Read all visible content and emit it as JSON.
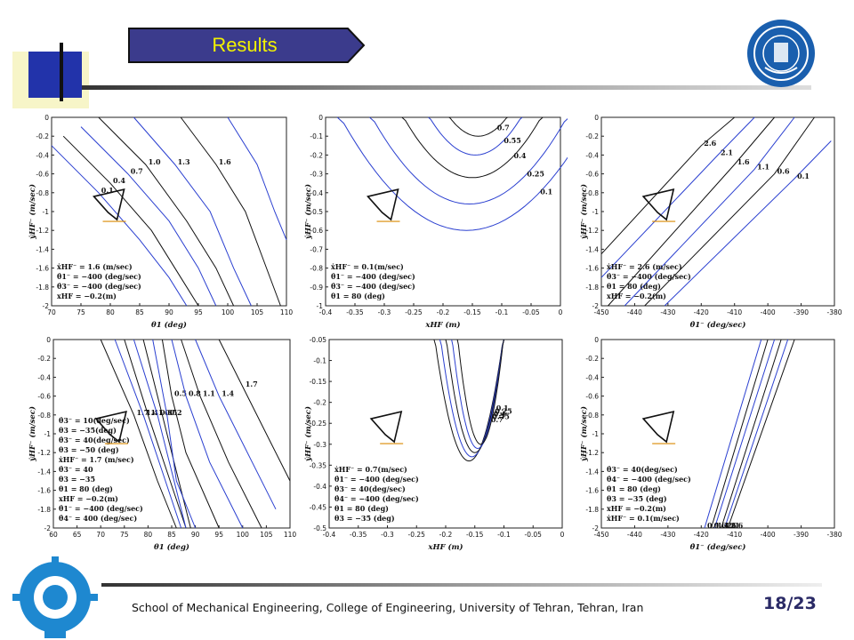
{
  "slide": {
    "title": "Results",
    "footer": "School of Mechanical Engineering, College of Engineering, University of Tehran, Tehran, Iran",
    "page": "18/23",
    "colors": {
      "title_bar": "#3b3b8c",
      "title_text": "#f2f200",
      "accent_blue": "#2233aa",
      "accent_gold": "#ddd000",
      "contour_blue": "#2a3fd0",
      "contour_black": "#111111"
    }
  },
  "chart_data": [
    {
      "type": "contour",
      "xlabel": "θ1 (deg)",
      "ylabel": "ẏHF⁻ (m/sec)",
      "xlim": [
        70,
        110
      ],
      "ylim": [
        -2,
        0
      ],
      "xticks": [
        "70",
        "75",
        "80",
        "85",
        "90",
        "95",
        "100",
        "105",
        "110"
      ],
      "yticks": [
        "0",
        "-0.2",
        "-0.4",
        "-0.6",
        "-0.8",
        "-1",
        "-1.2",
        "-1.4",
        "-1.6",
        "-1.8",
        "-2"
      ],
      "levels": [
        {
          "label": "0.1",
          "color": "blue",
          "pts": [
            [
              70,
              -0.3
            ],
            [
              78,
              -0.8
            ],
            [
              85,
              -1.3
            ],
            [
              90,
              -1.7
            ],
            [
              93,
              -2
            ]
          ]
        },
        {
          "label": "0.4",
          "color": "black",
          "pts": [
            [
              72,
              -0.2
            ],
            [
              80,
              -0.7
            ],
            [
              87,
              -1.2
            ],
            [
              92,
              -1.7
            ],
            [
              95,
              -2
            ]
          ]
        },
        {
          "label": "0.7",
          "color": "blue",
          "pts": [
            [
              75,
              -0.1
            ],
            [
              83,
              -0.6
            ],
            [
              90,
              -1.1
            ],
            [
              95,
              -1.6
            ],
            [
              98,
              -2
            ]
          ]
        },
        {
          "label": "1.0",
          "color": "black",
          "pts": [
            [
              78,
              0
            ],
            [
              86,
              -0.5
            ],
            [
              93,
              -1.1
            ],
            [
              98,
              -1.6
            ],
            [
              101,
              -2
            ]
          ]
        },
        {
          "label": "1.3",
          "color": "blue",
          "pts": [
            [
              84,
              0
            ],
            [
              91,
              -0.5
            ],
            [
              97,
              -1.0
            ],
            [
              101,
              -1.6
            ],
            [
              104,
              -2
            ]
          ]
        },
        {
          "label": "1.6",
          "color": "black",
          "pts": [
            [
              92,
              0
            ],
            [
              98,
              -0.5
            ],
            [
              103,
              -1.0
            ],
            [
              106,
              -1.5
            ],
            [
              109,
              -2
            ]
          ]
        },
        {
          "label": "",
          "color": "blue",
          "pts": [
            [
              100,
              0
            ],
            [
              105,
              -0.5
            ],
            [
              108,
              -1.0
            ],
            [
              110,
              -1.3
            ]
          ]
        }
      ],
      "annotations": [
        "ẋHF⁻ = 1.6 (m/sec)",
        "θ̇1⁻ = −400 (deg/sec)",
        "θ̇3⁻ = −400 (deg/sec)",
        "xHF = −0.2(m)"
      ]
    },
    {
      "type": "contour",
      "xlabel": "xHF (m)",
      "ylabel": "ẏHF⁻ (m/sec)",
      "xlim": [
        -0.4,
        0
      ],
      "ylim": [
        -1,
        0
      ],
      "xticks": [
        "-0.4",
        "-0.35",
        "-0.3",
        "-0.25",
        "-0.2",
        "-0.15",
        "-0.1",
        "-0.05",
        "0"
      ],
      "yticks": [
        "0",
        "-0.1",
        "-0.2",
        "-0.3",
        "-0.4",
        "-0.5",
        "-0.6",
        "-0.7",
        "-0.8",
        "-0.9",
        "-1"
      ],
      "levels": [
        {
          "label": "0.7",
          "color": "black",
          "min": [
            -0.14,
            -0.1
          ],
          "halfwidth": 0.05
        },
        {
          "label": "0.55",
          "color": "blue",
          "min": [
            -0.145,
            -0.2
          ],
          "halfwidth": 0.08
        },
        {
          "label": "0.4",
          "color": "black",
          "min": [
            -0.15,
            -0.32
          ],
          "halfwidth": 0.12
        },
        {
          "label": "0.25",
          "color": "blue",
          "min": [
            -0.155,
            -0.46
          ],
          "halfwidth": 0.17
        },
        {
          "label": "0.1",
          "color": "blue",
          "min": [
            -0.16,
            -0.6
          ],
          "halfwidth": 0.22
        }
      ],
      "annotations": [
        "ẋHF⁻ = 0.1(m/sec)",
        "θ̇1⁻ = −400 (deg/sec)",
        "θ̇3⁻ = −400 (deg/sec)",
        "θ1 = 80 (deg)"
      ]
    },
    {
      "type": "contour",
      "xlabel": "θ̇1⁻ (deg/sec)",
      "ylabel": "ẏHF⁻ (m/sec)",
      "xlim": [
        -450,
        -380
      ],
      "ylim": [
        -2,
        0
      ],
      "xticks": [
        "-450",
        "-440",
        "-430",
        "-420",
        "-410",
        "-400",
        "-390",
        "-380"
      ],
      "yticks": [
        "0",
        "-0.2",
        "-0.4",
        "-0.6",
        "-0.8",
        "-1",
        "-1.2",
        "-1.4",
        "-1.6",
        "-1.8",
        "-2"
      ],
      "levels": [
        {
          "label": "2.6",
          "color": "black",
          "pts": [
            [
              -450,
              -1.45
            ],
            [
              -420,
              -0.3
            ],
            [
              -410,
              0
            ]
          ]
        },
        {
          "label": "2.1",
          "color": "blue",
          "pts": [
            [
              -450,
              -1.7
            ],
            [
              -415,
              -0.4
            ],
            [
              -404,
              0
            ]
          ]
        },
        {
          "label": "1.6",
          "color": "black",
          "pts": [
            [
              -448,
              -2
            ],
            [
              -410,
              -0.5
            ],
            [
              -398,
              0
            ]
          ]
        },
        {
          "label": "1.1",
          "color": "blue",
          "pts": [
            [
              -443,
              -2
            ],
            [
              -404,
              -0.55
            ],
            [
              -392,
              0
            ]
          ]
        },
        {
          "label": "0.6",
          "color": "black",
          "pts": [
            [
              -437,
              -2
            ],
            [
              -398,
              -0.6
            ],
            [
              -386,
              0
            ]
          ]
        },
        {
          "label": "0.1",
          "color": "blue",
          "pts": [
            [
              -431,
              -2
            ],
            [
              -392,
              -0.65
            ],
            [
              -381,
              -0.25
            ]
          ]
        }
      ],
      "annotations": [
        "ẋHF⁻ = 2.6 (m/sec)",
        "θ̇3⁻ = −400 (deg/sec)",
        "θ1 = 80 (deg)",
        "xHF = −0.2(m)"
      ]
    },
    {
      "type": "contour",
      "xlabel": "θ1 (deg)",
      "ylabel": "ẏHF⁻ (m/sec)",
      "xlim": [
        60,
        110
      ],
      "ylim": [
        -2,
        0
      ],
      "xticks": [
        "60",
        "65",
        "70",
        "75",
        "80",
        "85",
        "90",
        "95",
        "100",
        "105",
        "110"
      ],
      "yticks": [
        "0",
        "-0.2",
        "-0.4",
        "-0.6",
        "-0.8",
        "-1",
        "-1.2",
        "-1.4",
        "-1.6",
        "-1.8",
        "-2"
      ],
      "levels": [
        {
          "label": "1.7",
          "color": "black",
          "pts": [
            [
              70,
              0
            ],
            [
              77,
              -0.8
            ],
            [
              82,
              -1.5
            ],
            [
              86,
              -2
            ]
          ]
        },
        {
          "label": "1.4",
          "color": "blue",
          "pts": [
            [
              73,
              0
            ],
            [
              79,
              -0.8
            ],
            [
              83,
              -1.4
            ],
            [
              87,
              -2
            ]
          ]
        },
        {
          "label": "1.1",
          "color": "black",
          "pts": [
            [
              75,
              0
            ],
            [
              80,
              -0.8
            ],
            [
              84,
              -1.4
            ],
            [
              88,
              -2
            ]
          ]
        },
        {
          "label": "0.8",
          "color": "blue",
          "pts": [
            [
              77,
              0
            ],
            [
              82,
              -0.8
            ],
            [
              85,
              -1.4
            ],
            [
              88,
              -2
            ]
          ]
        },
        {
          "label": "0.5",
          "color": "black",
          "pts": [
            [
              79,
              0
            ],
            [
              83,
              -0.8
            ],
            [
              86,
              -1.4
            ],
            [
              89,
              -2
            ]
          ]
        },
        {
          "label": "0.2",
          "color": "blue",
          "pts": [
            [
              81,
              0
            ],
            [
              84,
              -0.8
            ],
            [
              86,
              -1.5
            ],
            [
              90,
              -2
            ]
          ]
        },
        {
          "label": "0.5",
          "color": "black",
          "pts": [
            [
              83,
              0
            ],
            [
              85,
              -0.6
            ],
            [
              88,
              -1.2
            ],
            [
              95,
              -2
            ]
          ]
        },
        {
          "label": "0.8",
          "color": "blue",
          "pts": [
            [
              85,
              0
            ],
            [
              88,
              -0.6
            ],
            [
              93,
              -1.3
            ],
            [
              100,
              -2
            ]
          ]
        },
        {
          "label": "1.1",
          "color": "black",
          "pts": [
            [
              87,
              0
            ],
            [
              91,
              -0.6
            ],
            [
              97,
              -1.3
            ],
            [
              104,
              -2
            ]
          ]
        },
        {
          "label": "1.4",
          "color": "blue",
          "pts": [
            [
              90,
              0
            ],
            [
              95,
              -0.6
            ],
            [
              102,
              -1.3
            ],
            [
              107,
              -1.8
            ]
          ]
        },
        {
          "label": "1.7",
          "color": "black",
          "pts": [
            [
              95,
              0
            ],
            [
              100,
              -0.5
            ],
            [
              106,
              -1.1
            ],
            [
              110,
              -1.5
            ]
          ]
        }
      ],
      "annotations": [
        "θ̇3⁻ = 10(deg/sec)",
        "θ3 = −35(deg)",
        "θ̇3⁻ = 40(deg/sec)",
        "θ3 = −50 (deg)",
        "ẋHF⁻ = 1.7 (m/sec)",
        "θ̇3⁻ = 40",
        "θ3 = −35",
        "θ1 = 80 (deg)",
        "xHF = −0.2(m)",
        "θ̇1⁻ = −400 (deg/sec)",
        "θ̇4⁻ = 400 (deg/sec)"
      ]
    },
    {
      "type": "contour",
      "xlabel": "xHF (m)",
      "ylabel": "ẏHF⁻ (m/sec)",
      "xlim": [
        -0.4,
        0
      ],
      "ylim": [
        -0.5,
        -0.05
      ],
      "xticks": [
        "-0.4",
        "-0.35",
        "-0.3",
        "-0.25",
        "-0.2",
        "-0.15",
        "-0.1",
        "-0.05",
        "0"
      ],
      "yticks": [
        "-0.05",
        "-0.1",
        "-0.15",
        "-0.2",
        "-0.25",
        "-0.3",
        "-0.35",
        "-0.4",
        "-0.45",
        "-0.5"
      ],
      "levels": [
        {
          "label": "0.7",
          "color": "black",
          "min": [
            -0.16,
            -0.34
          ],
          "halfwidth": 0.06
        },
        {
          "label": "0.55",
          "color": "blue",
          "min": [
            -0.155,
            -0.33
          ],
          "halfwidth": 0.055
        },
        {
          "label": "0.4",
          "color": "black",
          "min": [
            -0.15,
            -0.32
          ],
          "halfwidth": 0.05
        },
        {
          "label": "0.25",
          "color": "blue",
          "min": [
            -0.145,
            -0.31
          ],
          "halfwidth": 0.045
        },
        {
          "label": "0.1",
          "color": "black",
          "min": [
            -0.14,
            -0.3
          ],
          "halfwidth": 0.04
        }
      ],
      "annotations": [
        "ẋHF⁻ = 0.7(m/sec)",
        "θ̇1⁻ = −400 (deg/sec)",
        "θ̇3⁻ = 40(deg/sec)",
        "θ̇4⁻ = −400 (deg/sec)",
        "θ1 = 80 (deg)",
        "θ3 = −35 (deg)"
      ]
    },
    {
      "type": "contour",
      "xlabel": "θ̇1⁻ (deg/sec)",
      "ylabel": "ẏHF⁻ (m/sec)",
      "xlim": [
        -450,
        -380
      ],
      "ylim": [
        -2,
        0
      ],
      "xticks": [
        "-450",
        "-440",
        "-430",
        "-420",
        "-410",
        "-400",
        "-390",
        "-380"
      ],
      "yticks": [
        "0",
        "-0.2",
        "-0.4",
        "-0.6",
        "-0.8",
        "-1",
        "-1.2",
        "-1.4",
        "-1.6",
        "-1.8",
        "-2"
      ],
      "levels": [
        {
          "label": "2.6",
          "color": "black",
          "pts": [
            [
              -392,
              0
            ],
            [
              -412,
              -2
            ]
          ]
        },
        {
          "label": "2.1",
          "color": "blue",
          "pts": [
            [
              -394,
              0
            ],
            [
              -413,
              -2
            ]
          ]
        },
        {
          "label": "1.6",
          "color": "black",
          "pts": [
            [
              -396,
              0
            ],
            [
              -414,
              -2
            ]
          ]
        },
        {
          "label": "1.1",
          "color": "blue",
          "pts": [
            [
              -398,
              0
            ],
            [
              -416,
              -2
            ]
          ]
        },
        {
          "label": "0.6",
          "color": "black",
          "pts": [
            [
              -400,
              0
            ],
            [
              -417,
              -2
            ]
          ]
        },
        {
          "label": "0.1",
          "color": "blue",
          "pts": [
            [
              -402,
              0
            ],
            [
              -419,
              -2
            ]
          ]
        }
      ],
      "annotations": [
        "θ̇3⁻ = 40(deg/sec)",
        "θ̇4⁻ = −400 (deg/sec)",
        "θ1 = 80 (deg)",
        "θ3 = −35 (deg)",
        "xHF = −0.2(m)",
        "ẋHF⁻ = 0.1(m/sec)"
      ]
    }
  ]
}
